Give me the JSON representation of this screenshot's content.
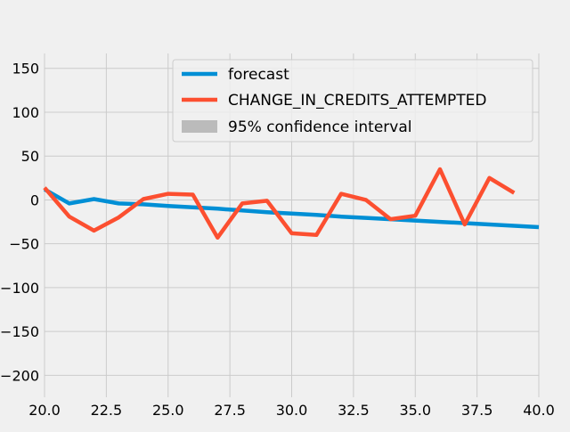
{
  "chart_data": {
    "type": "line",
    "x_range": [
      20.0,
      40.0
    ],
    "y_range": [
      -225,
      167
    ],
    "x_ticks": [
      20.0,
      22.5,
      25.0,
      27.5,
      30.0,
      32.5,
      35.0,
      37.5,
      40.0
    ],
    "x_tick_labels": [
      "20.0",
      "22.5",
      "25.0",
      "27.5",
      "30.0",
      "32.5",
      "35.0",
      "37.5",
      "40.0"
    ],
    "y_ticks": [
      -200,
      -150,
      -100,
      -50,
      0,
      50,
      100,
      150
    ],
    "y_tick_labels": [
      "−200",
      "−150",
      "−100",
      "−50",
      "0",
      "50",
      "100",
      "150"
    ],
    "grid": true,
    "legend_position": "top-right",
    "series": [
      {
        "name": "forecast",
        "color": "#008fd5",
        "x": [
          20,
          21,
          22,
          23,
          24,
          25,
          26,
          27,
          28,
          29,
          30,
          31,
          32,
          33,
          34,
          35,
          36,
          37,
          38,
          39,
          40
        ],
        "y": [
          12,
          -4,
          1,
          -4,
          -5,
          -7,
          -8.5,
          -10,
          -12,
          -14,
          -15.5,
          -17,
          -19,
          -20.5,
          -22,
          -23.5,
          -25,
          -26.5,
          -28,
          -29.5,
          -31
        ]
      },
      {
        "name": "CHANGE_IN_CREDITS_ATTEMPTED",
        "color": "#fc4f30",
        "x": [
          20,
          21,
          22,
          23,
          24,
          25,
          26,
          27,
          28,
          29,
          30,
          31,
          32,
          33,
          34,
          35,
          36,
          37,
          38,
          39
        ],
        "y": [
          14,
          -19,
          -35,
          -20,
          1,
          7,
          6,
          -43,
          -4,
          -1,
          -38,
          -40,
          7,
          0,
          -22,
          -18,
          35,
          -28,
          25,
          8
        ]
      }
    ],
    "confidence_interval": {
      "name": "95% confidence interval",
      "color": "#bbbbbb"
    }
  }
}
